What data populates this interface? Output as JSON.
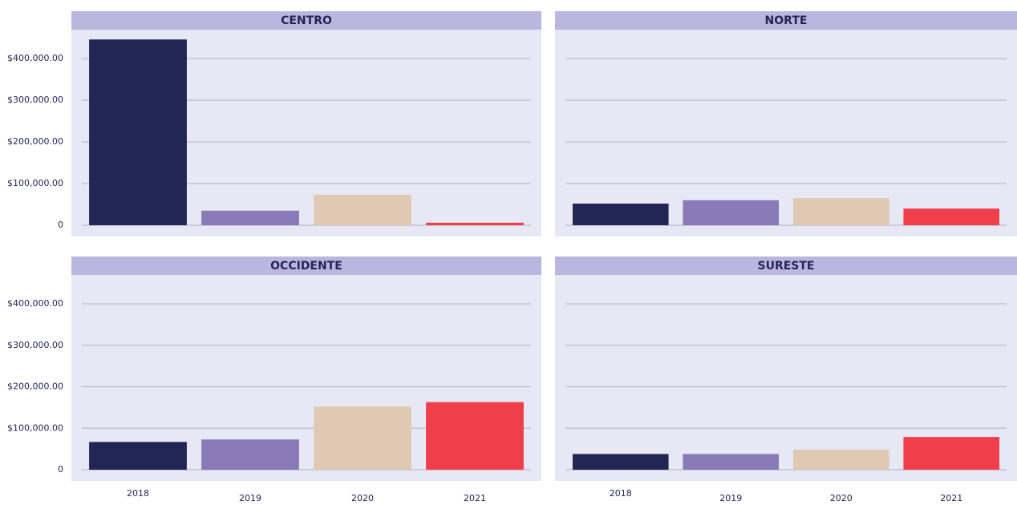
{
  "chart_data": [
    {
      "type": "bar",
      "title": "CENTRO",
      "categories": [
        "2018",
        "2019",
        "2020",
        "2021"
      ],
      "values": [
        446000,
        35000,
        73000,
        6000
      ],
      "colors": [
        "#222654",
        "#8a7ab8",
        "#dfc9b3",
        "#ee3f4b"
      ],
      "ylim": [
        0,
        460000
      ],
      "yticks": [
        {
          "value": 0,
          "label": "0"
        },
        {
          "value": 100000,
          "label": "$100,000.00"
        },
        {
          "value": 200000,
          "label": "$200,000.00"
        },
        {
          "value": 300000,
          "label": "$300,000.00"
        },
        {
          "value": 400000,
          "label": "$400,000.00"
        }
      ],
      "grid": true
    },
    {
      "type": "bar",
      "title": "NORTE",
      "categories": [
        "2018",
        "2019",
        "2020",
        "2021"
      ],
      "values": [
        52000,
        60000,
        65000,
        40000
      ],
      "colors": [
        "#222654",
        "#8a7ab8",
        "#dfc9b3",
        "#ee3f4b"
      ],
      "ylim": [
        0,
        460000
      ],
      "yticks": [
        0,
        100000,
        200000,
        300000,
        400000
      ],
      "grid": true
    },
    {
      "type": "bar",
      "title": "OCCIDENTE",
      "categories": [
        "2018",
        "2019",
        "2020",
        "2021"
      ],
      "values": [
        67000,
        73000,
        152000,
        163000
      ],
      "colors": [
        "#222654",
        "#8a7ab8",
        "#dfc9b3",
        "#ee3f4b"
      ],
      "ylim": [
        0,
        460000
      ],
      "yticks": [
        {
          "value": 0,
          "label": "0"
        },
        {
          "value": 100000,
          "label": "$100,000.00"
        },
        {
          "value": 200000,
          "label": "$200,000.00"
        },
        {
          "value": 300000,
          "label": "$300,000.00"
        },
        {
          "value": 400000,
          "label": "$400,000.00"
        }
      ],
      "grid": true
    },
    {
      "type": "bar",
      "title": "SURESTE",
      "categories": [
        "2018",
        "2019",
        "2020",
        "2021"
      ],
      "values": [
        38000,
        38000,
        48000,
        79000
      ],
      "colors": [
        "#222654",
        "#8a7ab8",
        "#dfc9b3",
        "#ee3f4b"
      ],
      "ylim": [
        0,
        460000
      ],
      "yticks": [
        0,
        100000,
        200000,
        300000,
        400000
      ],
      "grid": true
    }
  ]
}
